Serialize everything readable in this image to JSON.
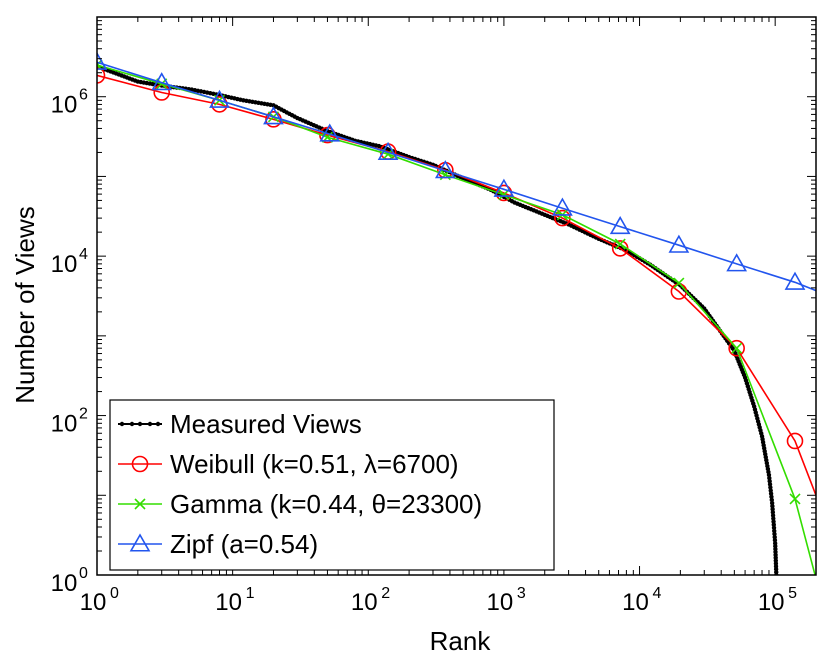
{
  "chart_data": {
    "type": "line",
    "title": "",
    "xlabel": "Rank",
    "ylabel": "Number of Views",
    "xscale": "log",
    "yscale": "log",
    "xlim": [
      1,
      200000
    ],
    "ylim": [
      1,
      10000000
    ],
    "x_ticks": [
      {
        "value": 1,
        "base": "10",
        "exp": "0"
      },
      {
        "value": 10,
        "base": "10",
        "exp": "1"
      },
      {
        "value": 100,
        "base": "10",
        "exp": "2"
      },
      {
        "value": 1000,
        "base": "10",
        "exp": "3"
      },
      {
        "value": 10000,
        "base": "10",
        "exp": "4"
      },
      {
        "value": 100000,
        "base": "10",
        "exp": "5"
      }
    ],
    "y_ticks": [
      {
        "value": 1,
        "base": "10",
        "exp": "0"
      },
      {
        "value": 100,
        "base": "10",
        "exp": "2"
      },
      {
        "value": 10000,
        "base": "10",
        "exp": "4"
      },
      {
        "value": 1000000,
        "base": "10",
        "exp": "6"
      }
    ],
    "legend_position": "bottom-left",
    "series": [
      {
        "name": "Measured Views",
        "legend_label": "Measured Views",
        "color": "#000000",
        "marker": "dot",
        "x": [
          1,
          2,
          3,
          5,
          8,
          12,
          20,
          30,
          50,
          80,
          120,
          200,
          300,
          500,
          800,
          1200,
          2000,
          3000,
          5000,
          8000,
          12000,
          20000,
          30000,
          50000,
          60000,
          70000,
          80000,
          90000,
          95000,
          100000,
          102000
        ],
        "y": [
          2400000,
          1550000,
          1380000,
          1230000,
          1050000,
          900000,
          780000,
          540000,
          370000,
          280000,
          240000,
          175000,
          140000,
          95000,
          68000,
          47000,
          33000,
          25000,
          16500,
          11800,
          7800,
          4300,
          2200,
          650,
          300,
          130,
          55,
          18,
          8,
          2.5,
          1
        ]
      },
      {
        "name": "Weibull",
        "legend_label": "Weibull (k=0.51, λ=6700)",
        "color": "#ff0000",
        "marker": "circle",
        "x": [
          1,
          3,
          8,
          20,
          50,
          140,
          370,
          1000,
          2700,
          7200,
          19500,
          52000,
          140000,
          200000
        ],
        "y": [
          1850000,
          1130000,
          800000,
          520000,
          330000,
          205000,
          120000,
          62000,
          30000,
          12500,
          3600,
          700,
          48,
          10
        ]
      },
      {
        "name": "Gamma",
        "legend_label": "Gamma (k=0.44, θ=23300)",
        "color": "#33dd00",
        "marker": "x",
        "x": [
          1,
          3,
          8,
          20,
          50,
          140,
          370,
          1000,
          2700,
          7200,
          19500,
          52000,
          140000,
          200000
        ],
        "y": [
          2500000,
          1450000,
          900000,
          560000,
          310000,
          190000,
          105000,
          59000,
          33000,
          14200,
          4600,
          700,
          9,
          0.9
        ]
      },
      {
        "name": "Zipf",
        "legend_label": "Zipf (a=0.54)",
        "color": "#2255ee",
        "marker": "triangle",
        "x": [
          1,
          3,
          8,
          20,
          52,
          140,
          370,
          1000,
          2700,
          7200,
          19500,
          52000,
          140000,
          200000
        ],
        "y": [
          2700000,
          1500000,
          900000,
          560000,
          340000,
          200000,
          118000,
          69000,
          40000,
          23500,
          13700,
          8000,
          4700,
          3700
        ]
      }
    ]
  }
}
